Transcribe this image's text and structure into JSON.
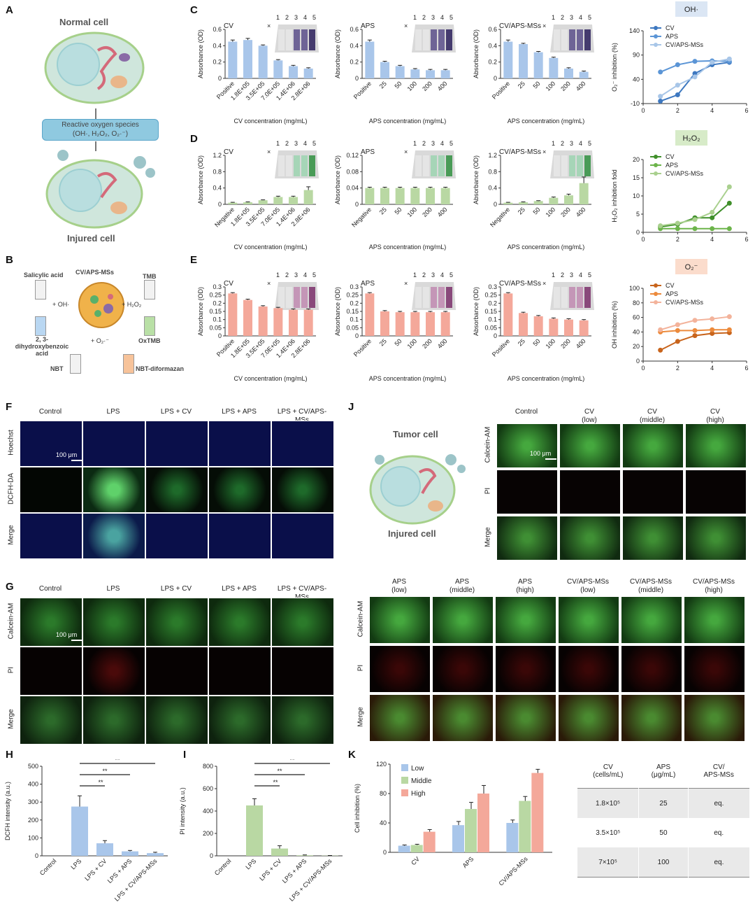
{
  "panel_labels": [
    "A",
    "B",
    "C",
    "D",
    "E",
    "F",
    "G",
    "H",
    "I",
    "J",
    "K"
  ],
  "panel_a": {
    "normal_cell": "Normal cell",
    "ros_line1": "Reactive oxygen species",
    "ros_line2": "(OH·, H₂O₂, O₂·⁻)",
    "injured_cell": "Injured cell"
  },
  "panel_b": {
    "center": "CV/APS-MSs",
    "salicylic": "Salicylic acid",
    "tmb": "TMB",
    "plus_oh": "+ OH·",
    "plus_h2o2": "+ H₂O₂",
    "plus_o2": "+ O₂·⁻",
    "dhba": "2, 3-dihydroxybenzoic acid",
    "oxtmb": "OxTMB",
    "nbt": "NBT",
    "nbt_dif": "NBT-diformazan"
  },
  "panel_j": {
    "tumor_cell": "Tumor cell",
    "injured_cell": "Injured cell"
  },
  "tube_numbers": [
    "×",
    "1",
    "2",
    "3",
    "4",
    "5"
  ],
  "scale_bar": "100 μm",
  "microscopy_f": {
    "columns": [
      "Control",
      "LPS",
      "LPS + CV",
      "LPS + APS",
      "LPS + CV/APS-MSs"
    ],
    "rows": [
      "Hoechst",
      "DCFH-DA",
      "Merge"
    ]
  },
  "microscopy_g": {
    "columns": [
      "Control",
      "LPS",
      "LPS + CV",
      "LPS + APS",
      "LPS + CV/APS-MSs"
    ],
    "rows": [
      "Calcein-AM",
      "PI",
      "Merge"
    ]
  },
  "microscopy_j_top": {
    "columns": [
      [
        "Control",
        ""
      ],
      [
        "CV",
        "(low)"
      ],
      [
        "CV",
        "(middle)"
      ],
      [
        "CV",
        "(high)"
      ]
    ],
    "rows": [
      "Calcein-AM",
      "PI",
      "Merge"
    ]
  },
  "microscopy_j_bottom": {
    "columns": [
      [
        "APS",
        "(low)"
      ],
      [
        "APS",
        "(middle)"
      ],
      [
        "APS",
        "(high)"
      ],
      [
        "CV/APS-MSs",
        "(low)"
      ],
      [
        "CV/APS-MSs",
        "(middle)"
      ],
      [
        "CV/APS-MSs",
        "(high)"
      ]
    ],
    "rows": [
      "Calcein-AM",
      "PI",
      "Merge"
    ]
  },
  "k_table": {
    "headers": [
      [
        "CV",
        "(cells/mL)"
      ],
      [
        "APS",
        "(μg/mL)"
      ],
      [
        "CV/",
        "APS-MSs"
      ]
    ],
    "rows": [
      [
        "1.8×10⁵",
        "25",
        "eq."
      ],
      [
        "3.5×10⁵",
        "50",
        "eq."
      ],
      [
        "7×10⁵",
        "100",
        "eq."
      ]
    ]
  },
  "colors": {
    "blue": "#a9c6ea",
    "blue_dark": "#3d78c0",
    "green": "#b9d8a3",
    "green_dark": "#3f8f2a",
    "salmon": "#f4a89a",
    "orange_dark": "#d26a1e",
    "badge_blue": "#dbe6f4",
    "badge_green": "#d7ebc8",
    "badge_orange": "#fbdccc"
  },
  "chart_data": [
    {
      "id": "C1",
      "type": "bar",
      "title": "CV",
      "color": "blue",
      "categories": [
        "Positive",
        "1.8E+05",
        "3.5E+05",
        "7.0E+05",
        "1.4E+06",
        "2.8E+06"
      ],
      "values": [
        0.45,
        0.47,
        0.4,
        0.22,
        0.15,
        0.12
      ],
      "errors": [
        0.02,
        0.02,
        0.01,
        0.01,
        0.01,
        0.01
      ],
      "ylabel": "Absorbance (OD)",
      "xlabel": "CV concentration (mg/mL)",
      "ylim": [
        0,
        0.6
      ],
      "yticks": [
        "0",
        "0.2",
        "0.4",
        "0.6"
      ]
    },
    {
      "id": "C2",
      "type": "bar",
      "title": "APS",
      "color": "blue",
      "categories": [
        "Positive",
        "25",
        "50",
        "100",
        "200",
        "400"
      ],
      "values": [
        0.45,
        0.2,
        0.15,
        0.11,
        0.1,
        0.1
      ],
      "errors": [
        0.02,
        0.01,
        0.01,
        0.01,
        0.01,
        0.01
      ],
      "ylabel": "Absorbance (OD)",
      "xlabel": "APS concentration (mg/mL)",
      "ylim": [
        0,
        0.6
      ],
      "yticks": [
        "0",
        "0.2",
        "0.4",
        "0.6"
      ]
    },
    {
      "id": "C3",
      "type": "bar",
      "title": "CV/APS-MSs",
      "color": "blue",
      "categories": [
        "Positive",
        "25",
        "50",
        "100",
        "200",
        "400"
      ],
      "values": [
        0.45,
        0.42,
        0.32,
        0.25,
        0.12,
        0.08
      ],
      "errors": [
        0.02,
        0.01,
        0.01,
        0.01,
        0.01,
        0.01
      ],
      "ylabel": "Absorbance (OD)",
      "xlabel": "APS concentration (mg/mL)",
      "ylim": [
        0,
        0.6
      ],
      "yticks": [
        "0",
        "0.2",
        "0.4",
        "0.6"
      ]
    },
    {
      "id": "D1",
      "type": "bar",
      "title": "CV",
      "color": "green",
      "categories": [
        "Negative",
        "1.8E+05",
        "3.5E+05",
        "7.0E+05",
        "1.4E+06",
        "2.8E+06"
      ],
      "values": [
        0.04,
        0.05,
        0.1,
        0.18,
        0.18,
        0.35
      ],
      "errors": [
        0.01,
        0.01,
        0.01,
        0.02,
        0.02,
        0.08
      ],
      "ylabel": "Absorbance (OD)",
      "xlabel": "CV concentration (mg/mL)",
      "ylim": [
        0,
        1.2
      ],
      "yticks": [
        "0",
        "0.4",
        "0.8",
        "1.2"
      ]
    },
    {
      "id": "D2",
      "type": "bar",
      "title": "APS",
      "color": "green",
      "categories": [
        "Negative",
        "25",
        "50",
        "100",
        "200",
        "400"
      ],
      "values": [
        0.04,
        0.04,
        0.04,
        0.04,
        0.04,
        0.04
      ],
      "errors": [
        0.002,
        0.002,
        0.002,
        0.002,
        0.002,
        0.002
      ],
      "ylabel": "Absorbance (OD)",
      "xlabel": "APS concentration (mg/mL)",
      "ylim": [
        0,
        0.12
      ],
      "yticks": [
        "0",
        "0.04",
        "0.08",
        "0.12"
      ]
    },
    {
      "id": "D3",
      "type": "bar",
      "title": "CV/APS-MSs",
      "color": "green",
      "categories": [
        "Negative",
        "25",
        "50",
        "100",
        "200",
        "400"
      ],
      "values": [
        0.04,
        0.05,
        0.08,
        0.16,
        0.22,
        0.52
      ],
      "errors": [
        0.01,
        0.01,
        0.01,
        0.02,
        0.03,
        0.15
      ],
      "ylabel": "Absorbance (OD)",
      "xlabel": "APS concentration (mg/mL)",
      "ylim": [
        0,
        1.2
      ],
      "yticks": [
        "0",
        "0.4",
        "0.8",
        "1.2"
      ]
    },
    {
      "id": "E1",
      "type": "bar",
      "title": "CV",
      "color": "salmon",
      "categories": [
        "Positive",
        "1.8E+05",
        "3.5E+05",
        "7.0E+05",
        "1.4E+06",
        "2.8E+06"
      ],
      "values": [
        0.26,
        0.22,
        0.18,
        0.17,
        0.16,
        0.16
      ],
      "errors": [
        0.005,
        0.005,
        0.005,
        0.005,
        0.005,
        0.005
      ],
      "ylabel": "Absorbance (OD)",
      "xlabel": "CV concentration (mg/mL)",
      "ylim": [
        0,
        0.3
      ],
      "yticks": [
        "0",
        "0.05",
        "0.1",
        "0.15",
        "0.2",
        "0.25",
        "0.3"
      ]
    },
    {
      "id": "E2",
      "type": "bar",
      "title": "APS",
      "color": "salmon",
      "categories": [
        "Positive",
        "25",
        "50",
        "100",
        "200",
        "400"
      ],
      "values": [
        0.26,
        0.15,
        0.145,
        0.145,
        0.145,
        0.145
      ],
      "errors": [
        0.005,
        0.005,
        0.005,
        0.005,
        0.005,
        0.005
      ],
      "ylabel": "Absorbance (OD)",
      "xlabel": "APS concentration (mg/mL)",
      "ylim": [
        0,
        0.3
      ],
      "yticks": [
        "0",
        "0.05",
        "0.1",
        "0.15",
        "0.2",
        "0.25",
        "0.3"
      ]
    },
    {
      "id": "E3",
      "type": "bar",
      "title": "CV/APS-MSs",
      "color": "salmon",
      "categories": [
        "Positive",
        "25",
        "50",
        "100",
        "200",
        "400"
      ],
      "values": [
        0.26,
        0.14,
        0.12,
        0.105,
        0.1,
        0.095
      ],
      "errors": [
        0.005,
        0.005,
        0.005,
        0.005,
        0.005,
        0.005
      ],
      "ylabel": "Absorbance (OD)",
      "xlabel": "APS concentration (mg/mL)",
      "ylim": [
        0,
        0.3
      ],
      "yticks": [
        "0",
        "0.05",
        "0.1",
        "0.15",
        "0.2",
        "0.25",
        "0.3"
      ]
    },
    {
      "id": "LC",
      "type": "line",
      "badge": "OH·",
      "badge_color": "badge_blue",
      "ylabel": "O₂⁻ inhibition (%)",
      "ylim": [
        -10,
        140
      ],
      "yticks": [
        "-10",
        "40",
        "90",
        "140"
      ],
      "xlim": [
        0,
        6
      ],
      "xticks": [
        "0",
        "2",
        "4",
        "6"
      ],
      "series": [
        {
          "name": "CV",
          "color": "#3d78c0",
          "x": [
            1,
            2,
            3,
            4,
            5
          ],
          "y": [
            -5,
            8,
            52,
            70,
            75
          ]
        },
        {
          "name": "APS",
          "color": "#5b95d6",
          "x": [
            1,
            2,
            3,
            4,
            5
          ],
          "y": [
            55,
            70,
            77,
            78,
            77
          ]
        },
        {
          "name": "CV/APS-MSs",
          "color": "#a8c6e8",
          "x": [
            1,
            2,
            3,
            4,
            5
          ],
          "y": [
            5,
            28,
            45,
            75,
            82
          ]
        }
      ]
    },
    {
      "id": "LD",
      "type": "line",
      "badge": "H₂O₂",
      "badge_color": "badge_green",
      "ylabel": "H₂O₂ inhibition fold",
      "ylim": [
        0,
        20
      ],
      "yticks": [
        "0",
        "5",
        "10",
        "15",
        "20"
      ],
      "xlim": [
        0,
        6
      ],
      "xticks": [
        "0",
        "2",
        "4",
        "6"
      ],
      "series": [
        {
          "name": "CV",
          "color": "#3f8f2a",
          "x": [
            1,
            2,
            3,
            4,
            5
          ],
          "y": [
            1.5,
            2.2,
            4,
            4,
            8
          ]
        },
        {
          "name": "APS",
          "color": "#6cb44a",
          "x": [
            1,
            2,
            3,
            4,
            5
          ],
          "y": [
            1,
            1,
            1,
            1,
            1
          ]
        },
        {
          "name": "CV/APS-MSs",
          "color": "#a9d08e",
          "x": [
            1,
            2,
            3,
            4,
            5
          ],
          "y": [
            1.8,
            2.5,
            3.5,
            5.5,
            12.5
          ]
        }
      ]
    },
    {
      "id": "LE",
      "type": "line",
      "badge": "O₂⁻",
      "badge_color": "badge_orange",
      "ylabel": "OH inhibition (%)",
      "ylim": [
        0,
        100
      ],
      "yticks": [
        "0",
        "20",
        "40",
        "60",
        "80",
        "100"
      ],
      "xlim": [
        0,
        6
      ],
      "xticks": [
        "0",
        "2",
        "4",
        "6"
      ],
      "series": [
        {
          "name": "CV",
          "color": "#c8641c",
          "x": [
            1,
            2,
            3,
            4,
            5
          ],
          "y": [
            15,
            27,
            35,
            38,
            39
          ]
        },
        {
          "name": "APS",
          "color": "#ec8a3c",
          "x": [
            1,
            2,
            3,
            4,
            5
          ],
          "y": [
            40,
            42,
            42,
            43,
            43
          ]
        },
        {
          "name": "CV/APS-MSs",
          "color": "#f3b39b",
          "x": [
            1,
            2,
            3,
            4,
            5
          ],
          "y": [
            43,
            50,
            56,
            58,
            61
          ]
        }
      ]
    },
    {
      "id": "H",
      "type": "bar",
      "color": "blue",
      "categories": [
        "Control",
        "LPS",
        "LPS + CV",
        "LPS + APS",
        "LPS + CV/APS-MSs"
      ],
      "values": [
        0,
        275,
        70,
        25,
        15
      ],
      "errors": [
        0,
        60,
        15,
        5,
        5
      ],
      "ylabel": "DCFH intensity (a.u.)",
      "ylim": [
        0,
        500
      ],
      "yticks": [
        "0",
        "100",
        "200",
        "300",
        "400",
        "500"
      ],
      "sig": "**"
    },
    {
      "id": "I",
      "type": "bar",
      "color": "green",
      "categories": [
        "Control",
        "LPS",
        "LPS + CV",
        "LPS + APS",
        "LPS + CV/APS-MSs"
      ],
      "values": [
        0,
        450,
        65,
        5,
        2
      ],
      "errors": [
        0,
        60,
        25,
        3,
        1
      ],
      "ylabel": "PI intensity (a.u.)",
      "ylim": [
        0,
        800
      ],
      "yticks": [
        "0",
        "200",
        "400",
        "600",
        "800"
      ],
      "sig": "**"
    },
    {
      "id": "K",
      "type": "bar",
      "ylabel": "Cell inhibition (%)",
      "ylim": [
        0,
        120
      ],
      "yticks": [
        "0",
        "40",
        "80",
        "120"
      ],
      "categories": [
        "CV",
        "APS",
        "CV/APS-MSs"
      ],
      "series": [
        {
          "name": "Low",
          "color": "#a9c6ea",
          "values": [
            9,
            37,
            40
          ],
          "errors": [
            1,
            5,
            4
          ]
        },
        {
          "name": "Middle",
          "color": "#b9d8a3",
          "values": [
            10,
            59,
            70
          ],
          "errors": [
            1,
            9,
            6
          ]
        },
        {
          "name": "High",
          "color": "#f4a89a",
          "values": [
            28,
            80,
            108
          ],
          "errors": [
            3,
            11,
            5
          ]
        }
      ]
    }
  ]
}
